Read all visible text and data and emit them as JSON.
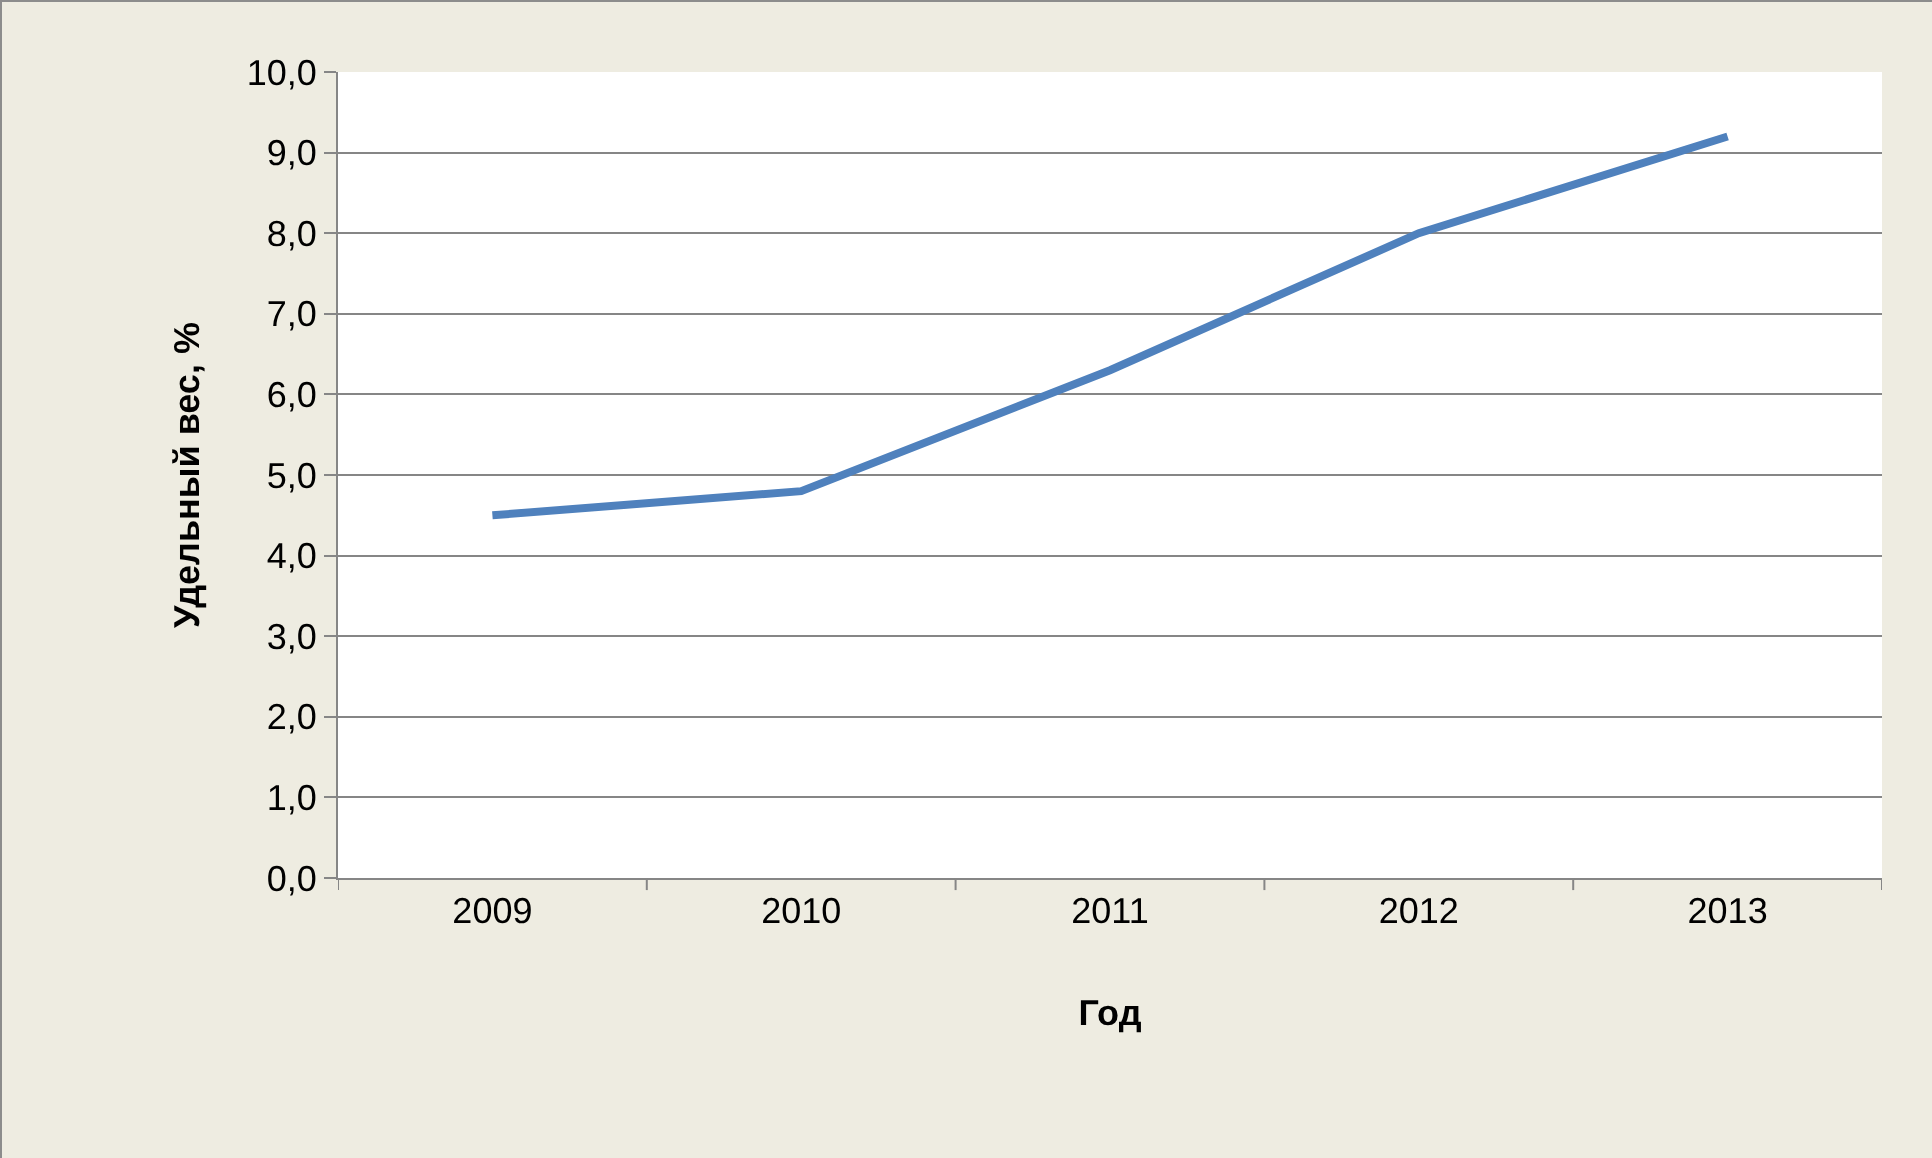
{
  "chart_data": {
    "type": "line",
    "xlabel": "Год",
    "ylabel": "Удельный вес, %",
    "categories": [
      "2009",
      "2010",
      "2011",
      "2012",
      "2013"
    ],
    "series": [
      {
        "color": "#4f81bd",
        "values": [
          4.5,
          4.8,
          6.3,
          8.0,
          9.2
        ]
      }
    ],
    "ylim": [
      0,
      10
    ],
    "yticks": [
      {
        "value": 0,
        "label": "0,0"
      },
      {
        "value": 1,
        "label": "1,0"
      },
      {
        "value": 2,
        "label": "2,0"
      },
      {
        "value": 3,
        "label": "3,0"
      },
      {
        "value": 4,
        "label": "4,0"
      },
      {
        "value": 5,
        "label": "5,0"
      },
      {
        "value": 6,
        "label": "6,0"
      },
      {
        "value": 7,
        "label": "7,0"
      },
      {
        "value": 8,
        "label": "8,0"
      },
      {
        "value": 9,
        "label": "9,0"
      },
      {
        "value": 10,
        "label": "10,0"
      }
    ],
    "grid": "y",
    "marker": "none",
    "line_style": "solid"
  }
}
